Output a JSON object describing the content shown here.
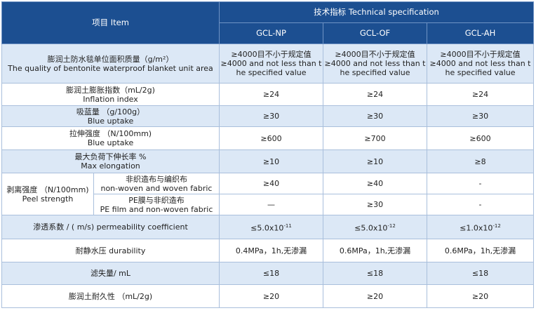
{
  "header": {
    "item": "项目 Item",
    "spec": "技术指标  Technical specification",
    "columns": [
      "GCL-NP",
      "GCL-OF",
      "GCL-AH"
    ]
  },
  "rows": [
    {
      "label": [
        "膨润土防水毯单位面积质量（g/m²）",
        "The quality of bentonite waterproof blanket unit area"
      ],
      "values": [
        [
          "≥4000目不小于规定值",
          "≥4000 and not less than t",
          "he specified value"
        ],
        [
          "≥4000目不小于规定值",
          "≥4000 and not less than t",
          "he specified value"
        ],
        [
          "≥4000目不小于规定值",
          "≥4000 and not less than t",
          "he specified value"
        ]
      ]
    },
    {
      "label": [
        "膨润土膨胀指数（mL/2g)",
        "Inflation index"
      ],
      "values": [
        [
          "≥24"
        ],
        [
          "≥24"
        ],
        [
          "≥24"
        ]
      ]
    },
    {
      "label": [
        "吸蓝量 （g/100g）",
        "Blue uptake"
      ],
      "values": [
        [
          "≥30"
        ],
        [
          "≥30"
        ],
        [
          "≥30"
        ]
      ]
    },
    {
      "label": [
        "拉伸强度 （N/100mm)",
        "Blue uptake"
      ],
      "values": [
        [
          "≥600"
        ],
        [
          "≥700"
        ],
        [
          "≥600"
        ]
      ]
    },
    {
      "label": [
        "最大负荷下伸长率 %",
        "Max elongation"
      ],
      "values": [
        [
          "≥10"
        ],
        [
          "≥10"
        ],
        [
          "≥8"
        ]
      ]
    },
    {
      "label": [
        "剥离强度 （N/100mm)",
        "Peel strength"
      ],
      "sub": [
        {
          "label": [
            "非织造布与编织布",
            "non-woven and woven fabric"
          ],
          "values": [
            [
              "≥40"
            ],
            [
              "≥40"
            ],
            [
              "-"
            ]
          ]
        },
        {
          "label": [
            "PE膜与非织造布",
            "PE film and non-woven fabric"
          ],
          "values": [
            [
              "—"
            ],
            [
              "≥30"
            ],
            [
              "-"
            ]
          ]
        }
      ]
    },
    {
      "label": [
        "渗透系数 / ( m/s) permeability coefficient"
      ],
      "values": [
        {
          "text": "≤5.0x10",
          "sup": "-11"
        },
        {
          "text": "≤5.0x10",
          "sup": "-12"
        },
        {
          "text": "≤1.0x10",
          "sup": "-12"
        }
      ]
    },
    {
      "label": [
        "耐静水压 durability"
      ],
      "values": [
        [
          "0.4MPa，1h,无渗漏"
        ],
        [
          "0.6MPa，1h,无渗漏"
        ],
        [
          "0.6MPa，1h,无渗漏"
        ]
      ]
    },
    {
      "label": [
        "滤失量/ mL"
      ],
      "values": [
        [
          "≤18"
        ],
        [
          "≤18"
        ],
        [
          "≤18"
        ]
      ]
    },
    {
      "label": [
        "膨润土耐久性 （mL/2g)"
      ],
      "values": [
        [
          "≥20"
        ],
        [
          "≥20"
        ],
        [
          "≥20"
        ]
      ]
    }
  ]
}
